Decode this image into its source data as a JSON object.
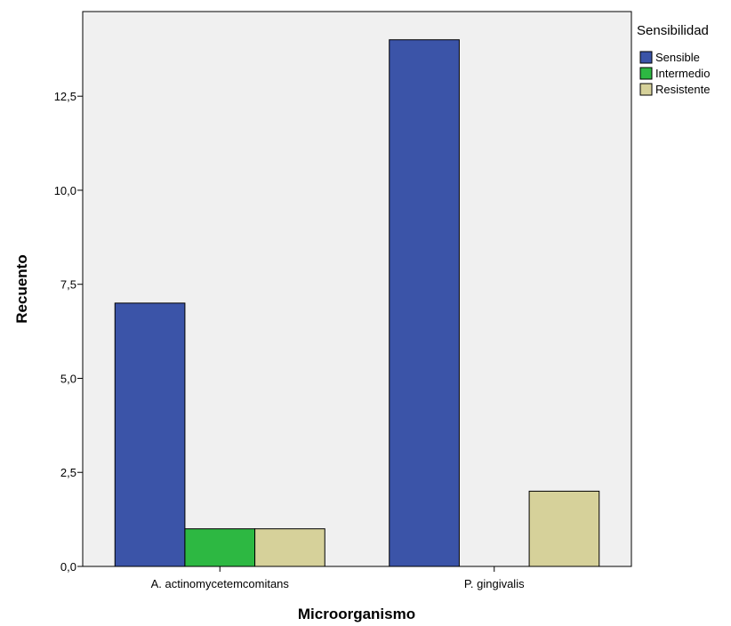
{
  "chart_data": {
    "type": "bar",
    "title": "",
    "xlabel": "Microorganismo",
    "ylabel": "Recuento",
    "categories": [
      "A. actinomycetemcomitans",
      "P. gingivalis"
    ],
    "series": [
      {
        "name": "Sensible",
        "values": [
          7,
          14
        ],
        "color": "#3b54a8"
      },
      {
        "name": "Intermedio",
        "values": [
          1,
          0
        ],
        "color": "#2db842"
      },
      {
        "name": "Resistente",
        "values": [
          1,
          2
        ],
        "color": "#d6d19a"
      }
    ],
    "ylim": [
      0,
      14.75
    ],
    "yticks": [
      0,
      2.5,
      5,
      7.5,
      10,
      12.5
    ],
    "ytick_labels": [
      "0,0",
      "2,5",
      "5,0",
      "7,5",
      "10,0",
      "12,5"
    ],
    "legend_title": "Sensibilidad",
    "legend_position": "top-right-outside",
    "grid": false,
    "plot_background": "#f0f0f0"
  }
}
